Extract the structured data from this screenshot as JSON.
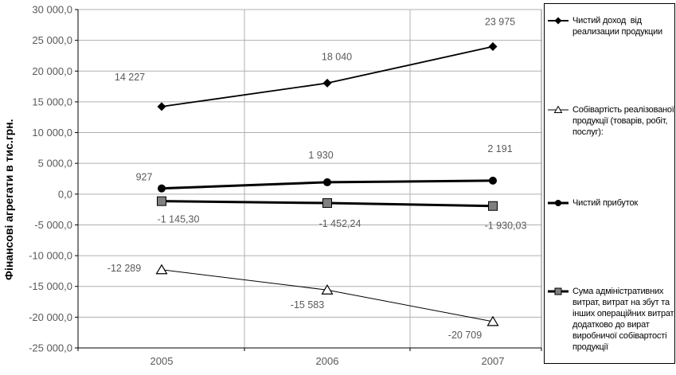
{
  "chart_data": {
    "type": "line",
    "categories": [
      "2005",
      "2006",
      "2007"
    ],
    "title": "",
    "xlabel": "",
    "ylabel": "Фінансові агрегати в тис.грн.",
    "ylim": [
      -25000,
      30000
    ],
    "ytick_step": 5000,
    "ytick_labels": [
      "30 000,0",
      "25 000,0",
      "20 000,0",
      "15 000,0",
      "10 000,0",
      "5 000,0",
      "0,0",
      "-5 000,0",
      "-10 000,0",
      "-15 000,0",
      "-20 000,0",
      "-25 000,0"
    ],
    "grid": true,
    "legend_position": "right",
    "series": [
      {
        "name": "Чистий доход  від реализации продукции",
        "marker": "diamond",
        "values": [
          14227,
          18040,
          23975
        ],
        "point_labels": [
          "14 227",
          "18 040",
          "23 975"
        ]
      },
      {
        "name": "Собівартість реалізованої продукції (товарів, робіт, послуг):",
        "marker": "triangle",
        "values": [
          -12289,
          -15583,
          -20709
        ],
        "point_labels": [
          "-12 289",
          "-15 583",
          "-20 709"
        ]
      },
      {
        "name": "Чистий прибуток",
        "marker": "circle",
        "values": [
          927,
          1930,
          2191
        ],
        "point_labels": [
          "927",
          "1 930",
          "2 191"
        ]
      },
      {
        "name": "Сума адміністративних витрат, витрат на збут та інших операційних витрат додатково до вират виробничої собівартості продукції",
        "marker": "square",
        "values": [
          -1145.3,
          -1452.24,
          -1930.03
        ],
        "point_labels": [
          "-1 145,30",
          "-1 452,24",
          "-1 930,03"
        ]
      }
    ]
  },
  "colors": {
    "series_line": "#000000",
    "gridline": "#b0b0b0",
    "plot_right_border": "#808080",
    "tick_label": "#595959",
    "data_label": "#595959",
    "square_fill": "#808080",
    "triangle_fill": "#ffffff",
    "legend_border": "#000000",
    "legend_text": "#000000"
  }
}
